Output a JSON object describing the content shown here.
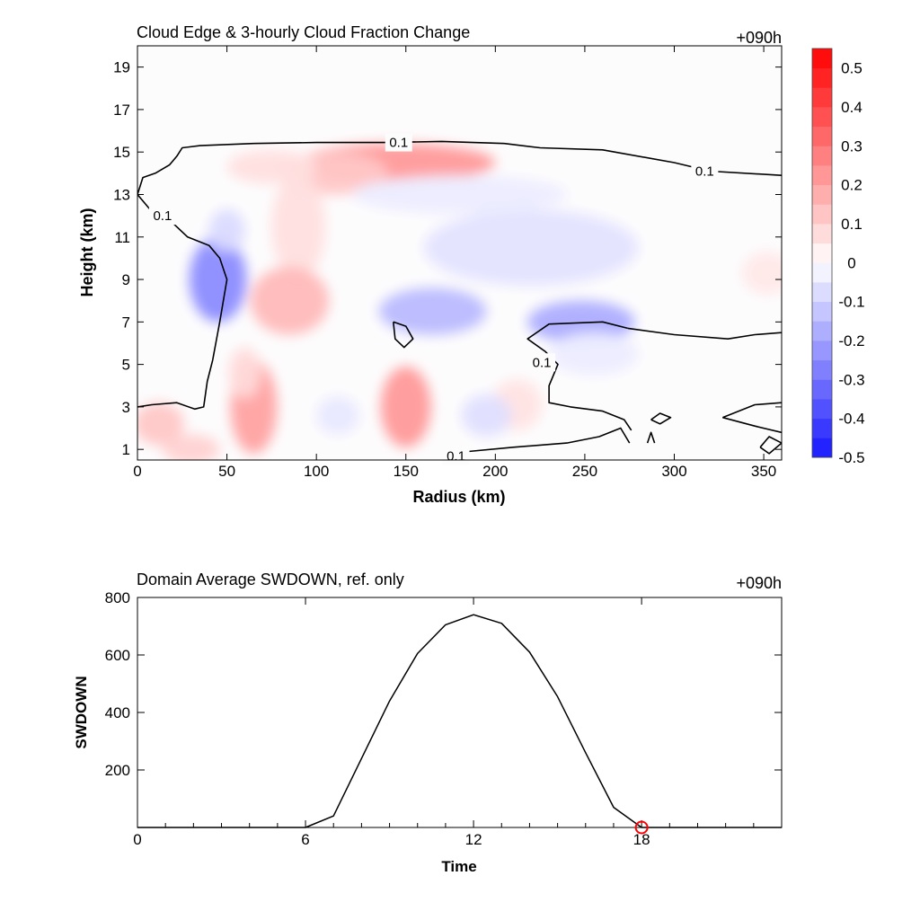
{
  "top_panel": {
    "title": "Cloud Edge & 3-hourly Cloud Fraction Change",
    "time_label": "+090h"
  },
  "bottom_panel": {
    "title": "Domain Average SWDOWN, ref. only",
    "time_label": "+090h"
  },
  "colors": {
    "positive_max": "#ff0000",
    "negative_max": "#0000ff",
    "neutral": "#ffffff",
    "contour_line": "#000000",
    "current_time_marker": "#ff0000"
  },
  "chart_data": [
    {
      "type": "heatmap",
      "title": "Cloud Edge & 3-hourly Cloud Fraction Change",
      "xlabel": "Radius (km)",
      "ylabel": "Height (km)",
      "xlim": [
        0,
        360
      ],
      "ylim": [
        0.5,
        20
      ],
      "xticks": [
        0,
        50,
        100,
        150,
        200,
        250,
        300,
        350
      ],
      "yticks": [
        1,
        3,
        5,
        7,
        9,
        11,
        13,
        15,
        17,
        19
      ],
      "colorbar": {
        "levels": [
          -0.5,
          -0.45,
          -0.4,
          -0.35,
          -0.3,
          -0.25,
          -0.2,
          -0.15,
          -0.1,
          -0.05,
          0,
          0.05,
          0.1,
          0.15,
          0.2,
          0.25,
          0.3,
          0.35,
          0.4,
          0.45,
          0.5,
          0.55
        ],
        "tick_labels": [
          "0.5",
          "0.4",
          "0.3",
          "0.2",
          "0.1",
          "0",
          "-0.1",
          "-0.2",
          "-0.3",
          "-0.4",
          "-0.5"
        ],
        "tick_values": [
          0.5,
          0.4,
          0.3,
          0.2,
          0.1,
          0,
          -0.1,
          -0.2,
          -0.3,
          -0.4,
          -0.5
        ]
      },
      "field_blobs": [
        {
          "x": 145,
          "y": 14.5,
          "rx": 55,
          "ry": 0.9,
          "value": 0.22
        },
        {
          "x": 110,
          "y": 14.0,
          "rx": 30,
          "ry": 1.0,
          "value": 0.12
        },
        {
          "x": 75,
          "y": 14.3,
          "rx": 25,
          "ry": 0.8,
          "value": 0.07
        },
        {
          "x": 90,
          "y": 11.5,
          "rx": 15,
          "ry": 2.5,
          "value": 0.07
        },
        {
          "x": 85,
          "y": 8.0,
          "rx": 22,
          "ry": 1.6,
          "value": 0.15
        },
        {
          "x": 65,
          "y": 3.0,
          "rx": 13,
          "ry": 2.2,
          "value": 0.2
        },
        {
          "x": 60,
          "y": 4.6,
          "rx": 9,
          "ry": 1.2,
          "value": 0.08
        },
        {
          "x": 150,
          "y": 3.0,
          "rx": 14,
          "ry": 1.9,
          "value": 0.22
        },
        {
          "x": 12,
          "y": 2.2,
          "rx": 14,
          "ry": 1.0,
          "value": 0.12
        },
        {
          "x": 30,
          "y": 1.0,
          "rx": 16,
          "ry": 0.7,
          "value": 0.1
        },
        {
          "x": 212,
          "y": 3.1,
          "rx": 14,
          "ry": 1.2,
          "value": 0.06
        },
        {
          "x": 352,
          "y": 9.3,
          "rx": 14,
          "ry": 1.0,
          "value": 0.05
        },
        {
          "x": 45,
          "y": 9.0,
          "rx": 16,
          "ry": 2.0,
          "value": -0.25
        },
        {
          "x": 50,
          "y": 11.3,
          "rx": 10,
          "ry": 1.0,
          "value": -0.08
        },
        {
          "x": 165,
          "y": 7.5,
          "rx": 30,
          "ry": 1.1,
          "value": -0.15
        },
        {
          "x": 248,
          "y": 7.0,
          "rx": 30,
          "ry": 1.0,
          "value": -0.18
        },
        {
          "x": 220,
          "y": 10.5,
          "rx": 60,
          "ry": 1.8,
          "value": -0.06
        },
        {
          "x": 195,
          "y": 2.6,
          "rx": 14,
          "ry": 1.0,
          "value": -0.07
        },
        {
          "x": 112,
          "y": 2.6,
          "rx": 12,
          "ry": 0.9,
          "value": -0.05
        },
        {
          "x": 180,
          "y": 13.0,
          "rx": 60,
          "ry": 0.9,
          "value": -0.04
        },
        {
          "x": 255,
          "y": 5.5,
          "rx": 25,
          "ry": 1.0,
          "value": -0.04
        }
      ],
      "contour_level": 0.1,
      "contours": [
        {
          "points": [
            [
              0,
              13.0
            ],
            [
              3,
              13.8
            ],
            [
              10,
              14.0
            ],
            [
              18,
              14.4
            ],
            [
              22,
              14.8
            ],
            [
              25,
              15.2
            ],
            [
              35,
              15.3
            ],
            [
              65,
              15.4
            ],
            [
              100,
              15.45
            ],
            [
              140,
              15.45
            ],
            [
              170,
              15.5
            ],
            [
              205,
              15.4
            ],
            [
              225,
              15.2
            ],
            [
              260,
              15.1
            ],
            [
              300,
              14.5
            ],
            [
              320,
              14.1
            ],
            [
              360,
              13.9
            ]
          ]
        },
        {
          "points": [
            [
              0,
              13.0
            ],
            [
              8,
              12.2
            ],
            [
              18,
              11.8
            ],
            [
              28,
              11.0
            ],
            [
              40,
              10.6
            ],
            [
              46,
              10.0
            ],
            [
              50,
              9.0
            ],
            [
              46,
              7.0
            ],
            [
              42,
              5.2
            ],
            [
              39,
              4.2
            ],
            [
              37,
              3.0
            ],
            [
              32,
              2.9
            ],
            [
              22,
              3.2
            ],
            [
              8,
              3.1
            ],
            [
              0,
              3.0
            ]
          ]
        },
        {
          "points": [
            [
              176,
              0.5
            ],
            [
              185,
              0.9
            ],
            [
              210,
              1.1
            ],
            [
              240,
              1.3
            ],
            [
              258,
              1.6
            ],
            [
              270,
              2.0
            ],
            [
              275,
              1.3
            ]
          ]
        },
        {
          "points": [
            [
              287,
              2.4
            ],
            [
              292,
              2.7
            ],
            [
              298,
              2.5
            ],
            [
              292,
              2.2
            ],
            [
              287,
              2.4
            ]
          ]
        },
        {
          "points": [
            [
              274,
              6.7
            ],
            [
              260,
              7.0
            ],
            [
              230,
              6.9
            ],
            [
              218,
              6.2
            ],
            [
              228,
              5.6
            ],
            [
              235,
              5.0
            ],
            [
              230,
              4.0
            ],
            [
              230,
              3.2
            ],
            [
              242,
              3.0
            ],
            [
              260,
              2.8
            ],
            [
              272,
              2.4
            ],
            [
              276,
              1.9
            ]
          ]
        },
        {
          "points": [
            [
              274,
              6.7
            ],
            [
              300,
              6.4
            ],
            [
              330,
              6.2
            ],
            [
              345,
              6.4
            ],
            [
              360,
              6.5
            ]
          ]
        },
        {
          "points": [
            [
              143,
              7.0
            ],
            [
              150,
              6.8
            ],
            [
              154,
              6.2
            ],
            [
              149,
              5.8
            ],
            [
              144,
              6.2
            ],
            [
              143,
              7.0
            ]
          ]
        },
        {
          "points": [
            [
              327,
              2.5
            ],
            [
              345,
              3.1
            ],
            [
              360,
              3.2
            ]
          ]
        },
        {
          "points": [
            [
              327,
              2.5
            ],
            [
              345,
              2.1
            ],
            [
              360,
              1.8
            ]
          ]
        },
        {
          "points": [
            [
              348,
              1.1
            ],
            [
              353,
              1.6
            ],
            [
              360,
              1.3
            ],
            [
              353,
              0.8
            ],
            [
              348,
              1.1
            ]
          ]
        },
        {
          "points": [
            [
              285,
              1.3
            ],
            [
              287,
              1.8
            ],
            [
              289,
              1.3
            ]
          ]
        }
      ],
      "contour_labels": [
        {
          "text": "0.1",
          "x": 146,
          "y": 15.45
        },
        {
          "text": "0.1",
          "x": 317,
          "y": 14.1
        },
        {
          "text": "0.1",
          "x": 14,
          "y": 12.0
        },
        {
          "text": "0.1",
          "x": 226,
          "y": 5.1
        },
        {
          "text": "0.1",
          "x": 178,
          "y": 0.7
        }
      ]
    },
    {
      "type": "line",
      "title": "Domain Average SWDOWN, ref. only",
      "xlabel": "Time",
      "ylabel": "SWDOWN",
      "xlim": [
        0,
        23
      ],
      "ylim": [
        0,
        800
      ],
      "xticks": [
        0,
        6,
        12,
        18
      ],
      "yticks": [
        200,
        400,
        600,
        800
      ],
      "x": [
        0,
        1,
        2,
        3,
        4,
        5,
        6,
        7,
        8,
        9,
        10,
        11,
        12,
        13,
        14,
        15,
        16,
        17,
        18,
        19,
        20,
        21,
        22,
        23
      ],
      "values": [
        0,
        0,
        0,
        0,
        0,
        0,
        0,
        40,
        240,
        440,
        605,
        705,
        740,
        710,
        610,
        455,
        260,
        70,
        0,
        0,
        0,
        0,
        0,
        0
      ],
      "current_time_marker": {
        "x": 18,
        "y": 0
      }
    }
  ]
}
